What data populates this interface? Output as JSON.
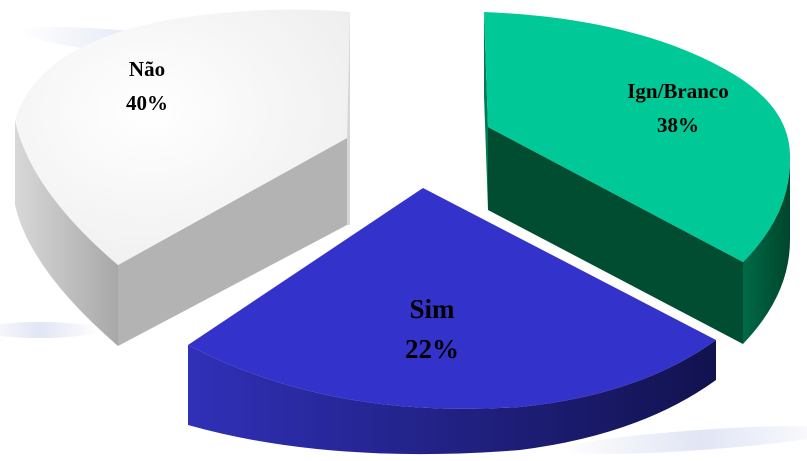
{
  "chart_data": {
    "type": "pie",
    "title": "",
    "style": "3d-exploded",
    "legend": "none",
    "slices": [
      {
        "key": "nao",
        "label": "Não",
        "value": 40,
        "value_label": "40%",
        "color": "#f0f0f0",
        "side_color": "#bfbfbf"
      },
      {
        "key": "ign",
        "label": "Ign/Branco",
        "value": 38,
        "value_label": "38%",
        "color": "#00c897",
        "side_color": "#005a3a"
      },
      {
        "key": "sim",
        "label": "Sim",
        "value": 22,
        "value_label": "22%",
        "color": "#3333cc",
        "side_color": "#1a1a6e"
      }
    ]
  }
}
